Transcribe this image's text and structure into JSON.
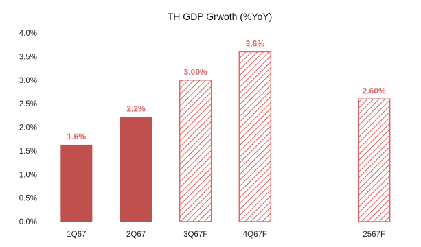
{
  "chart_data": {
    "type": "bar",
    "title": "TH GDP Grwoth (%YoY)",
    "categories": [
      "1Q67",
      "2Q67",
      "3Q67F",
      "4Q67F",
      "",
      "2567F"
    ],
    "values": [
      1.63,
      2.22,
      3.0,
      3.6,
      null,
      2.6
    ],
    "data_labels": [
      "1.6%",
      "2.2%",
      "3.00%",
      "3.6%",
      "",
      "2.60%"
    ],
    "bar_styles": [
      "solid",
      "solid",
      "hatched",
      "hatched",
      "none",
      "hatched"
    ],
    "ylim": [
      0,
      4.0
    ],
    "yticks": [
      0.0,
      0.5,
      1.0,
      1.5,
      2.0,
      2.5,
      3.0,
      3.5,
      4.0
    ],
    "ytick_labels": [
      "0.0%",
      "0.5%",
      "1.0%",
      "1.5%",
      "2.0%",
      "2.5%",
      "3.0%",
      "3.5%",
      "4.0%"
    ],
    "xlabel": "",
    "ylabel": "",
    "grid": false,
    "legend": "none",
    "colors": {
      "solid_bar": "#c0504d",
      "hatch": "#e06666",
      "label": "#e06666",
      "axis": "#bfbfbf"
    }
  }
}
